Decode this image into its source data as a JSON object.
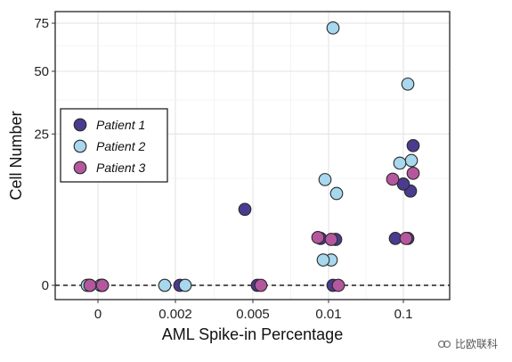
{
  "chart_data": {
    "type": "scatter",
    "xlabel": "AML Spike-in Percentage",
    "ylabel": "Cell Number",
    "categories": [
      "0",
      "0.002",
      "0.005",
      "0.01",
      "0.1"
    ],
    "yticks": [
      "0",
      "25",
      "50",
      "75"
    ],
    "y_scale": "square-root",
    "ylim": [
      0,
      80
    ],
    "grid": true,
    "reference_line": {
      "y": 0,
      "style": "dashed"
    },
    "legend_position": "left",
    "series": [
      {
        "name": "Patient 1",
        "color": "#4b3b8f",
        "points": [
          {
            "x": "0",
            "y": 0
          },
          {
            "x": "0",
            "y": 0
          },
          {
            "x": "0.002",
            "y": 0
          },
          {
            "x": "0.005",
            "y": 0
          },
          {
            "x": "0.005",
            "y": 6.3
          },
          {
            "x": "0.01",
            "y": 0
          },
          {
            "x": "0.01",
            "y": 2.4
          },
          {
            "x": "0.01",
            "y": 2.3
          },
          {
            "x": "0.1",
            "y": 2.4
          },
          {
            "x": "0.1",
            "y": 2.4
          },
          {
            "x": "0.1",
            "y": 9.7
          },
          {
            "x": "0.1",
            "y": 11.2
          },
          {
            "x": "0.1",
            "y": 21.3
          }
        ]
      },
      {
        "name": "Patient 2",
        "color": "#a7d8ee",
        "points": [
          {
            "x": "0",
            "y": 0
          },
          {
            "x": "0",
            "y": 0
          },
          {
            "x": "0.002",
            "y": 0
          },
          {
            "x": "0.002",
            "y": 0
          },
          {
            "x": "0.01",
            "y": 0.7
          },
          {
            "x": "0.01",
            "y": 0.7
          },
          {
            "x": "0.01",
            "y": 9.2
          },
          {
            "x": "0.01",
            "y": 12.2
          },
          {
            "x": "0.01",
            "y": 72.3
          },
          {
            "x": "0.1",
            "y": 17.0
          },
          {
            "x": "0.1",
            "y": 16.3
          },
          {
            "x": "0.1",
            "y": 44.2
          }
        ]
      },
      {
        "name": "Patient 3",
        "color": "#b5579f",
        "points": [
          {
            "x": "0",
            "y": 0
          },
          {
            "x": "0",
            "y": 0
          },
          {
            "x": "0.005",
            "y": 0
          },
          {
            "x": "0.01",
            "y": 0
          },
          {
            "x": "0.01",
            "y": 2.5
          },
          {
            "x": "0.01",
            "y": 2.3
          },
          {
            "x": "0.1",
            "y": 13.7
          },
          {
            "x": "0.1",
            "y": 12.3
          },
          {
            "x": "0.1",
            "y": 2.4
          }
        ]
      }
    ]
  },
  "watermark": {
    "text": "比欧联科"
  }
}
